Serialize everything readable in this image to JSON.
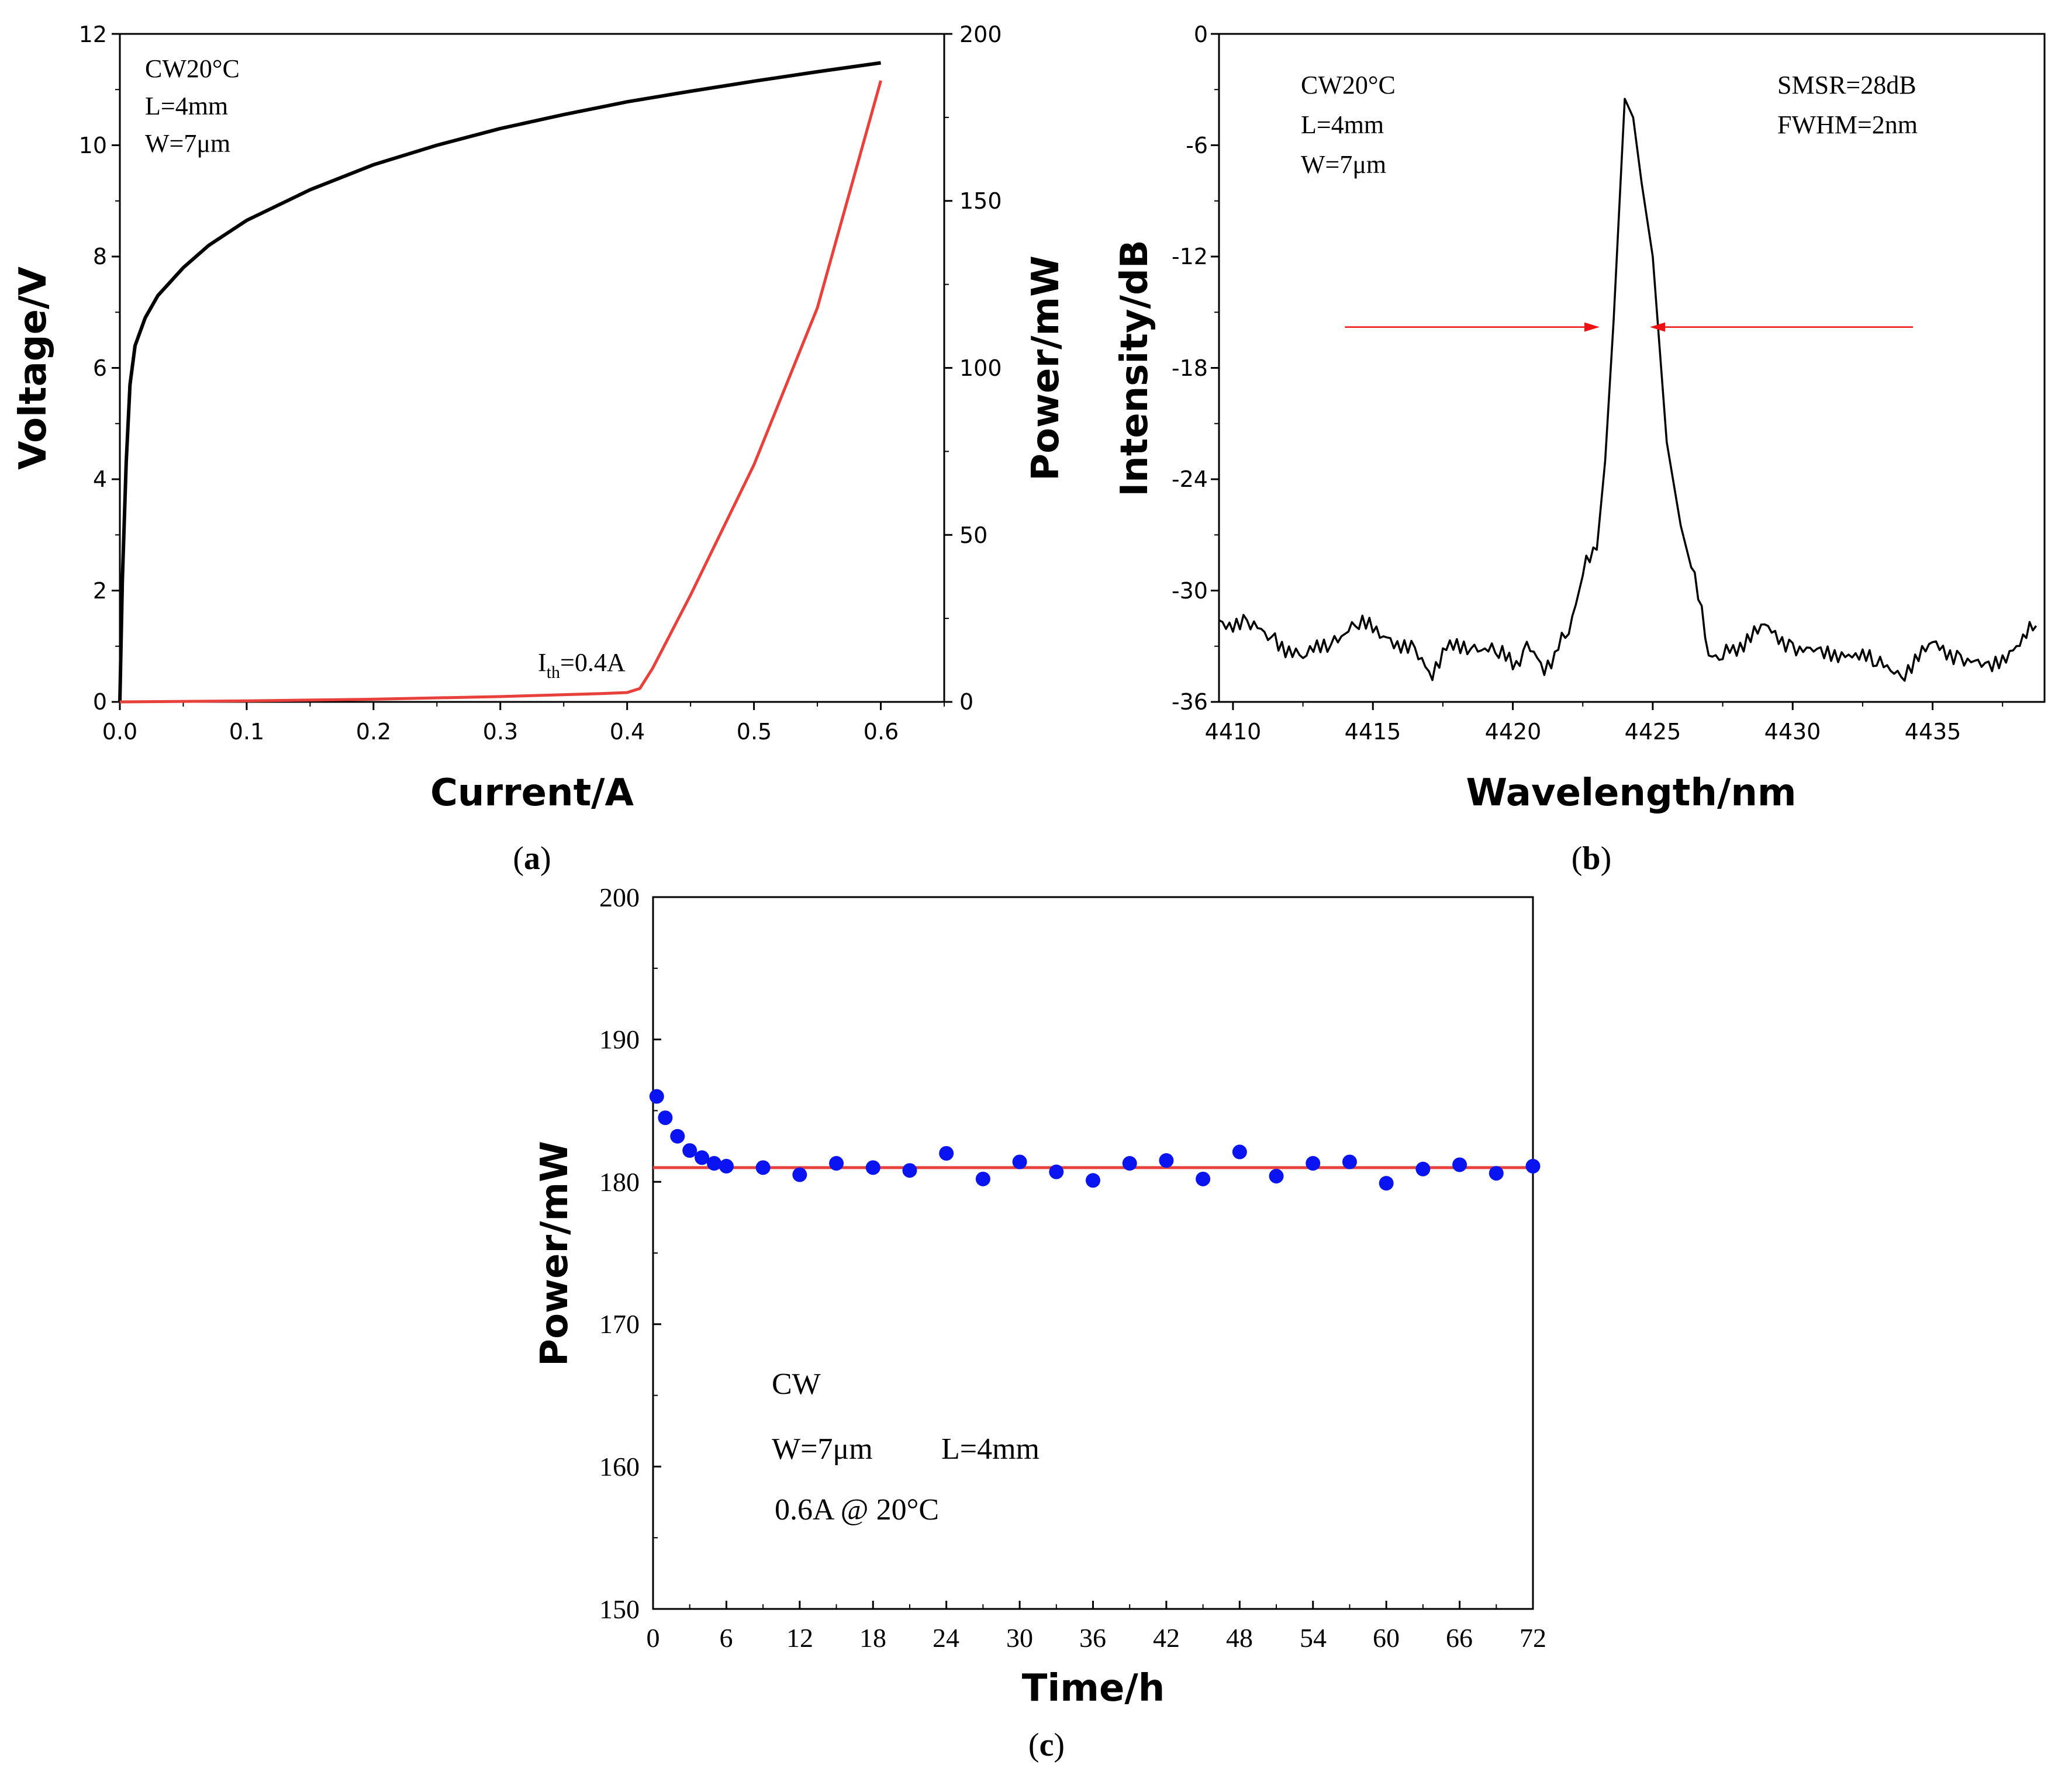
{
  "figure": {
    "panel_a_label": "a",
    "panel_b_label": "b",
    "panel_c_label": "c",
    "a_annotations": [
      "CW20°C",
      "L=4mm",
      "W=7μm"
    ],
    "a_threshold": {
      "prefix": "I",
      "sub": "th",
      "suffix": "=0.4A"
    },
    "b_annotations_left": [
      "CW20°C",
      "L=4mm",
      "W=7μm"
    ],
    "b_annotations_right": [
      "SMSR=28dB",
      "FWHM=2nm"
    ],
    "c_annotations": [
      "CW",
      "W=7μm",
      "L=4mm",
      "0.6A @ 20°C"
    ],
    "colors": {
      "black_curve": "#000000",
      "red_curve": "#e8403a",
      "dots": "#0a14f0",
      "arrow": "#ee1111"
    }
  },
  "chart_data": [
    {
      "id": "a",
      "type": "line",
      "title": "",
      "xlabel": "Current/A",
      "ylabel": "Voltage/V",
      "y2label": "Power/mW",
      "xlim": [
        0,
        0.65
      ],
      "ylim": [
        0,
        12
      ],
      "y2lim": [
        0,
        200
      ],
      "x_ticks": [
        "0.0",
        "0.1",
        "0.2",
        "0.3",
        "0.4",
        "0.5",
        "0.6"
      ],
      "y_ticks": [
        "0",
        "2",
        "4",
        "6",
        "8",
        "10",
        "12"
      ],
      "y2_ticks": [
        "0",
        "50",
        "100",
        "150",
        "200"
      ],
      "series": [
        {
          "name": "Voltage",
          "axis": "left",
          "color": "#000000",
          "x": [
            0,
            0.002,
            0.005,
            0.008,
            0.012,
            0.02,
            0.03,
            0.05,
            0.07,
            0.1,
            0.15,
            0.2,
            0.25,
            0.3,
            0.35,
            0.4,
            0.45,
            0.5,
            0.55,
            0.6
          ],
          "y": [
            0,
            2.2,
            4.3,
            5.7,
            6.4,
            6.9,
            7.3,
            7.8,
            8.2,
            8.65,
            9.2,
            9.65,
            10.0,
            10.3,
            10.55,
            10.78,
            10.97,
            11.15,
            11.32,
            11.48
          ]
        },
        {
          "name": "Power",
          "axis": "right",
          "color": "#e8403a",
          "x": [
            0,
            0.1,
            0.2,
            0.3,
            0.38,
            0.4,
            0.41,
            0.42,
            0.45,
            0.5,
            0.55,
            0.6
          ],
          "y": [
            0,
            0.3,
            0.8,
            1.6,
            2.5,
            2.8,
            4,
            10,
            32,
            71,
            118,
            186
          ]
        }
      ]
    },
    {
      "id": "b",
      "type": "line",
      "title": "",
      "xlabel": "Wavelength/nm",
      "ylabel": "Intensity/dB",
      "xlim": [
        4409.5,
        4439
      ],
      "ylim": [
        -36,
        0
      ],
      "x_ticks": [
        "4410",
        "4415",
        "4420",
        "4425",
        "4430",
        "4435"
      ],
      "y_ticks": [
        "0",
        "-6",
        "-12",
        "-18",
        "-24",
        "-30",
        "-36"
      ],
      "fwhm_marker_level": -15.8,
      "fwhm_left_arrow_x": [
        4414,
        4423.1
      ],
      "fwhm_right_arrow_x": [
        4434.3,
        4424.9
      ],
      "series": [
        {
          "name": "Spectrum",
          "color": "#000000",
          "x": [
            4409.5,
            4410.5,
            4411.5,
            4412.5,
            4413.5,
            4414.5,
            4415.5,
            4416.5,
            4417.0,
            4417.5,
            4418.5,
            4419.5,
            4420.0,
            4420.5,
            4421.0,
            4421.5,
            4422.0,
            4422.5,
            4423.0,
            4423.3,
            4423.6,
            4424.0,
            4424.3,
            4424.6,
            4425.0,
            4425.5,
            4426.0,
            4426.5,
            4427.0,
            4427.5,
            4428.0,
            4429.0,
            4430.0,
            4431.0,
            4432.0,
            4433.0,
            4434.0,
            4435.0,
            4436.0,
            4437.0,
            4438.0,
            4438.7
          ],
          "y": [
            -31.6,
            -31.9,
            -32.6,
            -33.7,
            -32.6,
            -31.8,
            -32.4,
            -33.4,
            -34.6,
            -33.3,
            -32.8,
            -33.4,
            -34.0,
            -33.1,
            -34.1,
            -33.6,
            -32.0,
            -29.0,
            -27.8,
            -23.0,
            -15.5,
            -3.5,
            -4.5,
            -8.0,
            -12.0,
            -22.0,
            -26.5,
            -29.5,
            -33.2,
            -33.6,
            -33.0,
            -32.1,
            -32.9,
            -33.6,
            -33.2,
            -34.0,
            -34.3,
            -33.0,
            -33.5,
            -34.4,
            -32.8,
            -31.9
          ]
        }
      ]
    },
    {
      "id": "c",
      "type": "scatter",
      "title": "",
      "xlabel": "Time/h",
      "ylabel": "Power/mW",
      "xlim": [
        0,
        72
      ],
      "ylim": [
        150,
        200
      ],
      "x_ticks": [
        "0",
        "6",
        "12",
        "18",
        "24",
        "30",
        "36",
        "42",
        "48",
        "54",
        "60",
        "66",
        "72"
      ],
      "y_ticks": [
        "150",
        "160",
        "170",
        "180",
        "190",
        "200"
      ],
      "reference_line": {
        "y": 181,
        "color": "#e8403a"
      },
      "series": [
        {
          "name": "Power",
          "color": "#0a14f0",
          "x": [
            0.3,
            1,
            2,
            3,
            4,
            5,
            6,
            9,
            12,
            15,
            18,
            21,
            24,
            27,
            30,
            33,
            36,
            39,
            42,
            45,
            48,
            51,
            54,
            57,
            60,
            63,
            66,
            69,
            72
          ],
          "y": [
            186.0,
            184.5,
            183.2,
            182.2,
            181.7,
            181.3,
            181.1,
            181.0,
            180.5,
            181.3,
            181.0,
            180.8,
            182.0,
            180.2,
            181.4,
            180.7,
            180.1,
            181.3,
            181.5,
            180.2,
            182.1,
            180.4,
            181.3,
            181.4,
            179.9,
            180.9,
            181.2,
            180.6,
            181.1
          ]
        }
      ]
    }
  ]
}
